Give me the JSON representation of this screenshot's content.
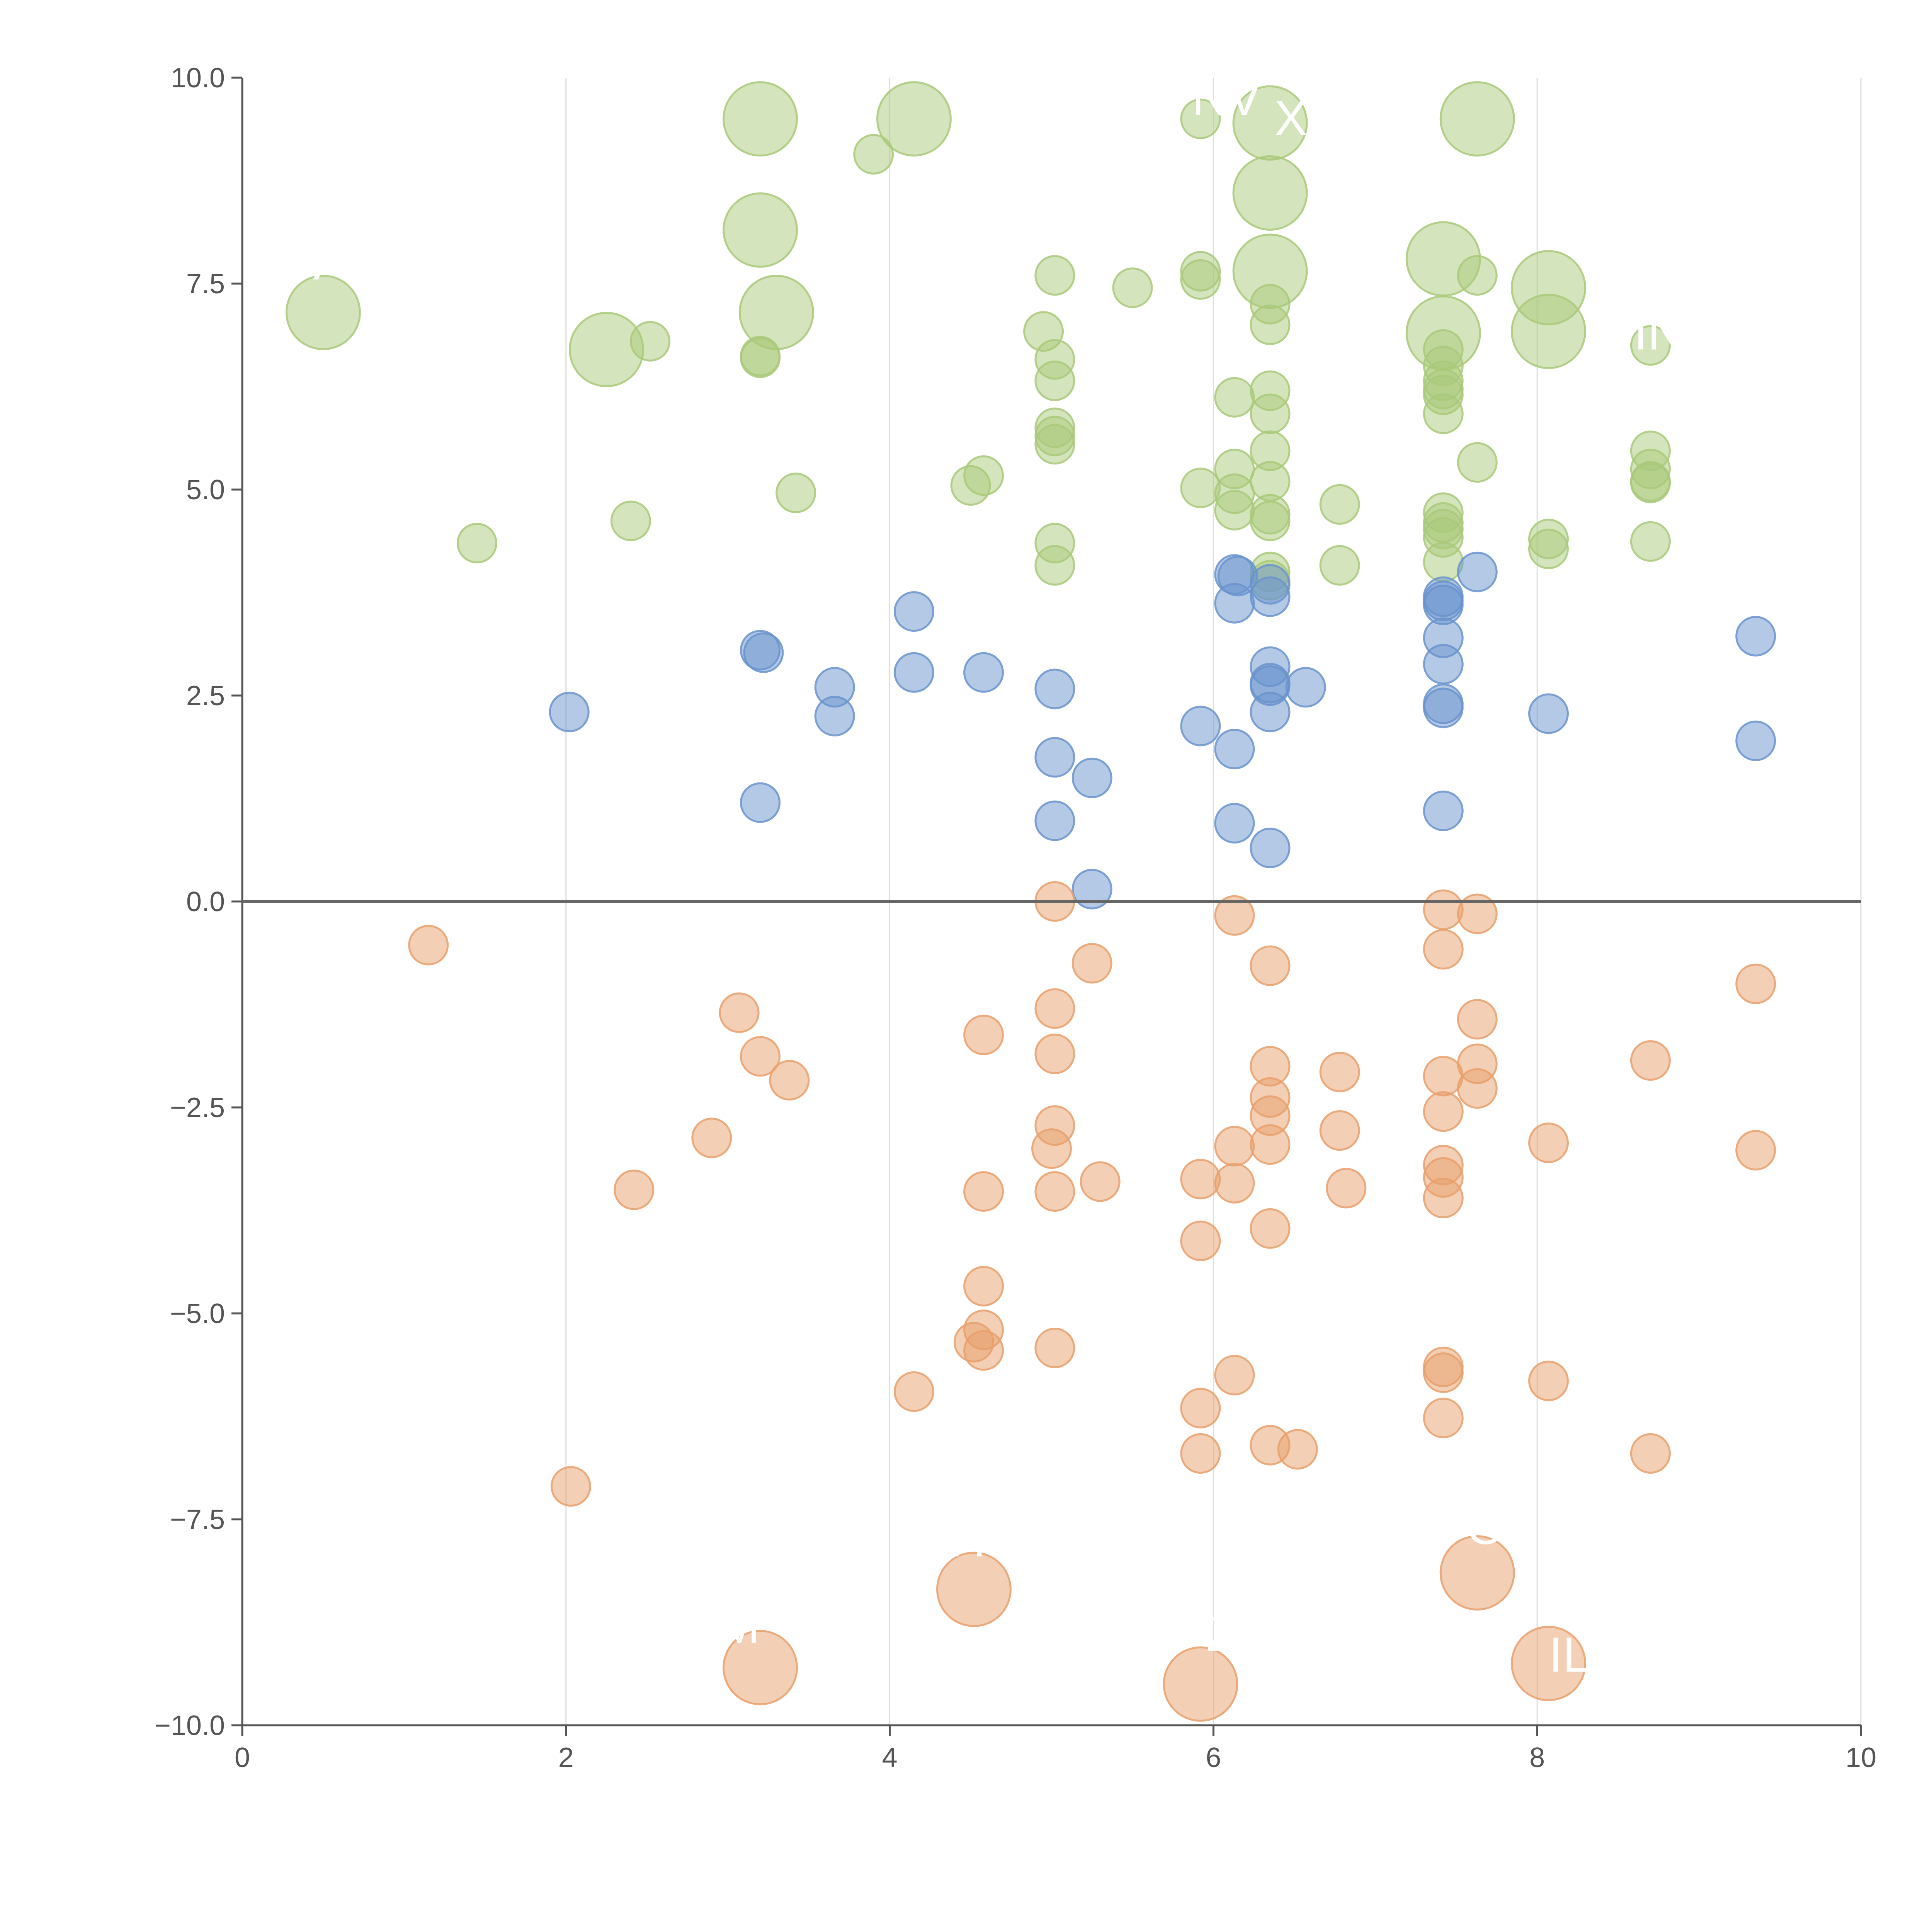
{
  "chart_data": {
    "type": "scatter",
    "title": "",
    "xlabel": "",
    "ylabel": "",
    "xlim": [
      0,
      10
    ],
    "ylim": [
      -10,
      10
    ],
    "x_ticks": [
      0,
      2,
      4,
      6,
      8,
      10
    ],
    "x_tick_labels": [
      "0",
      "2",
      "4",
      "6",
      "8",
      "10"
    ],
    "y_ticks": [
      -10,
      -7.5,
      -5,
      -2.5,
      0,
      2.5,
      5,
      7.5,
      10
    ],
    "y_tick_labels": [
      "−10.0",
      "−7.5",
      "−5.0",
      "−2.5",
      "0.0",
      "2.5",
      "5.0",
      "7.5",
      "10.0"
    ],
    "vertical_grid": true,
    "zero_line": true,
    "colors": {
      "green": "#a9c97a",
      "blue": "#6a93cd",
      "orange": "#e8a06c",
      "axis": "#555555",
      "grid": "#dddddd",
      "zero": "#666666"
    },
    "series": [
      {
        "name": "green",
        "color": "#a9c97a",
        "points": [
          [
            0.5,
            7.15,
            2
          ],
          [
            1.45,
            4.35,
            1
          ],
          [
            2.25,
            6.7,
            2
          ],
          [
            2.4,
            4.62,
            1
          ],
          [
            2.52,
            6.8,
            1
          ],
          [
            3.2,
            9.5,
            2
          ],
          [
            3.2,
            8.15,
            2
          ],
          [
            3.3,
            7.15,
            2
          ],
          [
            3.2,
            6.6,
            1
          ],
          [
            3.2,
            6.62,
            1
          ],
          [
            3.42,
            4.96,
            1
          ],
          [
            3.9,
            9.07,
            1
          ],
          [
            4.15,
            9.5,
            2
          ],
          [
            4.5,
            5.05,
            1
          ],
          [
            4.58,
            5.17,
            1
          ],
          [
            4.95,
            6.92,
            1
          ],
          [
            5.02,
            7.6,
            1
          ],
          [
            5.02,
            6.58,
            1
          ],
          [
            5.02,
            6.32,
            1
          ],
          [
            5.02,
            5.75,
            1
          ],
          [
            5.02,
            5.65,
            1
          ],
          [
            5.02,
            5.55,
            1
          ],
          [
            5.02,
            4.35,
            1
          ],
          [
            5.02,
            4.08,
            1
          ],
          [
            5.5,
            7.45,
            1
          ],
          [
            5.92,
            9.5,
            1
          ],
          [
            5.92,
            7.65,
            1
          ],
          [
            5.92,
            7.55,
            1
          ],
          [
            5.92,
            5.02,
            1
          ],
          [
            6.13,
            6.12,
            1
          ],
          [
            6.13,
            5.25,
            1
          ],
          [
            6.13,
            4.95,
            1
          ],
          [
            6.13,
            4.75,
            1
          ],
          [
            6.35,
            9.45,
            2
          ],
          [
            6.35,
            8.6,
            2
          ],
          [
            6.35,
            7.65,
            2
          ],
          [
            6.35,
            7.25,
            1
          ],
          [
            6.35,
            7.0,
            1
          ],
          [
            6.35,
            6.2,
            1
          ],
          [
            6.35,
            5.92,
            1
          ],
          [
            6.35,
            5.47,
            1
          ],
          [
            6.35,
            5.1,
            1
          ],
          [
            6.35,
            4.7,
            1
          ],
          [
            6.35,
            4.62,
            1
          ],
          [
            6.35,
            4.0,
            1
          ],
          [
            6.35,
            3.9,
            1
          ],
          [
            6.78,
            4.82,
            1
          ],
          [
            6.78,
            4.08,
            1
          ],
          [
            7.42,
            7.8,
            2
          ],
          [
            7.42,
            6.9,
            2
          ],
          [
            7.42,
            6.7,
            1
          ],
          [
            7.42,
            6.5,
            1
          ],
          [
            7.42,
            6.32,
            1
          ],
          [
            7.42,
            6.22,
            1
          ],
          [
            7.42,
            6.15,
            1
          ],
          [
            7.42,
            5.92,
            1
          ],
          [
            7.42,
            4.72,
            1
          ],
          [
            7.42,
            4.6,
            1
          ],
          [
            7.42,
            4.52,
            1
          ],
          [
            7.42,
            4.42,
            1
          ],
          [
            7.42,
            4.12,
            1
          ],
          [
            7.63,
            9.5,
            2
          ],
          [
            7.63,
            7.6,
            1
          ],
          [
            7.63,
            5.33,
            1
          ],
          [
            8.07,
            7.45,
            2
          ],
          [
            8.07,
            6.92,
            2
          ],
          [
            8.07,
            4.4,
            1
          ],
          [
            8.07,
            4.28,
            1
          ],
          [
            8.7,
            6.75,
            1
          ],
          [
            8.7,
            5.47,
            1
          ],
          [
            8.7,
            5.25,
            1
          ],
          [
            8.7,
            5.1,
            1
          ],
          [
            8.7,
            5.08,
            1
          ],
          [
            8.7,
            4.37,
            1
          ]
        ]
      },
      {
        "name": "blue",
        "color": "#6a93cd",
        "points": [
          [
            2.02,
            2.3,
            1
          ],
          [
            3.2,
            3.05,
            1
          ],
          [
            3.22,
            3.02,
            1
          ],
          [
            3.2,
            1.2,
            1
          ],
          [
            3.66,
            2.6,
            1
          ],
          [
            3.66,
            2.25,
            1
          ],
          [
            4.15,
            3.52,
            1
          ],
          [
            4.15,
            2.78,
            1
          ],
          [
            4.58,
            2.78,
            1
          ],
          [
            5.02,
            2.58,
            1
          ],
          [
            5.02,
            1.75,
            1
          ],
          [
            5.02,
            0.98,
            1
          ],
          [
            5.25,
            1.5,
            1
          ],
          [
            5.25,
            0.15,
            1
          ],
          [
            5.92,
            2.13,
            1
          ],
          [
            6.13,
            3.97,
            1
          ],
          [
            6.15,
            3.95,
            1
          ],
          [
            6.13,
            3.62,
            1
          ],
          [
            6.13,
            1.85,
            1
          ],
          [
            6.13,
            0.95,
            1
          ],
          [
            6.35,
            3.85,
            1
          ],
          [
            6.35,
            3.7,
            1
          ],
          [
            6.35,
            2.85,
            1
          ],
          [
            6.35,
            2.65,
            1
          ],
          [
            6.35,
            2.62,
            1
          ],
          [
            6.35,
            2.3,
            1
          ],
          [
            6.35,
            0.65,
            1
          ],
          [
            6.57,
            2.6,
            1
          ],
          [
            7.42,
            3.7,
            1
          ],
          [
            7.42,
            3.65,
            1
          ],
          [
            7.42,
            3.6,
            1
          ],
          [
            7.42,
            3.2,
            1
          ],
          [
            7.42,
            2.88,
            1
          ],
          [
            7.42,
            2.4,
            1
          ],
          [
            7.42,
            2.35,
            1
          ],
          [
            7.42,
            1.1,
            1
          ],
          [
            7.63,
            4.0,
            1
          ],
          [
            8.07,
            2.28,
            1
          ],
          [
            9.35,
            3.22,
            1
          ],
          [
            9.35,
            1.95,
            1
          ]
        ]
      },
      {
        "name": "orange",
        "color": "#e8a06c",
        "points": [
          [
            1.15,
            -0.53,
            1
          ],
          [
            2.03,
            -7.1,
            1
          ],
          [
            2.42,
            -3.5,
            1
          ],
          [
            2.9,
            -2.87,
            1
          ],
          [
            3.07,
            -1.35,
            1
          ],
          [
            3.2,
            -1.88,
            1
          ],
          [
            3.38,
            -2.17,
            1
          ],
          [
            3.2,
            -9.3,
            2
          ],
          [
            4.15,
            -5.95,
            1
          ],
          [
            4.52,
            -8.35,
            2
          ],
          [
            4.52,
            -5.35,
            1
          ],
          [
            4.58,
            -1.62,
            1
          ],
          [
            4.58,
            -3.52,
            1
          ],
          [
            4.58,
            -4.67,
            1
          ],
          [
            4.58,
            -5.2,
            1
          ],
          [
            4.58,
            -5.45,
            1
          ],
          [
            5.02,
            0.0,
            1
          ],
          [
            5.02,
            -1.3,
            1
          ],
          [
            5.02,
            -1.85,
            1
          ],
          [
            5.02,
            -2.72,
            1
          ],
          [
            5.0,
            -3.0,
            1
          ],
          [
            5.02,
            -3.52,
            1
          ],
          [
            5.02,
            -5.42,
            1
          ],
          [
            5.25,
            -0.75,
            1
          ],
          [
            5.3,
            -3.4,
            1
          ],
          [
            5.92,
            -3.37,
            1
          ],
          [
            5.92,
            -4.12,
            1
          ],
          [
            5.92,
            -6.15,
            1
          ],
          [
            5.92,
            -6.7,
            1
          ],
          [
            5.92,
            -9.5,
            2
          ],
          [
            6.13,
            -0.17,
            1
          ],
          [
            6.13,
            -2.97,
            1
          ],
          [
            6.13,
            -3.42,
            1
          ],
          [
            6.13,
            -5.75,
            1
          ],
          [
            6.35,
            -0.78,
            1
          ],
          [
            6.35,
            -2.0,
            1
          ],
          [
            6.35,
            -2.38,
            1
          ],
          [
            6.35,
            -2.6,
            1
          ],
          [
            6.35,
            -2.95,
            1
          ],
          [
            6.35,
            -3.97,
            1
          ],
          [
            6.35,
            -6.6,
            1
          ],
          [
            6.52,
            -6.65,
            1
          ],
          [
            6.78,
            -2.07,
            1
          ],
          [
            6.78,
            -2.78,
            1
          ],
          [
            6.82,
            -3.48,
            1
          ],
          [
            7.42,
            -0.1,
            1
          ],
          [
            7.42,
            -0.58,
            1
          ],
          [
            7.42,
            -2.12,
            1
          ],
          [
            7.42,
            -2.55,
            1
          ],
          [
            7.42,
            -3.2,
            1
          ],
          [
            7.42,
            -3.35,
            1
          ],
          [
            7.42,
            -3.6,
            1
          ],
          [
            7.42,
            -5.65,
            1
          ],
          [
            7.42,
            -5.72,
            1
          ],
          [
            7.42,
            -6.27,
            1
          ],
          [
            7.63,
            -0.15,
            1
          ],
          [
            7.63,
            -1.43,
            1
          ],
          [
            7.63,
            -1.97,
            1
          ],
          [
            7.63,
            -2.27,
            1
          ],
          [
            7.63,
            -8.15,
            2
          ],
          [
            8.07,
            -2.93,
            1
          ],
          [
            8.07,
            -5.82,
            1
          ],
          [
            8.07,
            -9.25,
            2
          ],
          [
            8.7,
            -1.93,
            1
          ],
          [
            8.7,
            -6.7,
            1
          ],
          [
            9.35,
            -1.0,
            1
          ],
          [
            9.35,
            -3.02,
            1
          ]
        ]
      }
    ],
    "annotations": [
      {
        "text": "VA",
        "x": 0.45,
        "y": 7.55
      },
      {
        "text": "NV",
        "x": 6.08,
        "y": 9.55
      },
      {
        "text": "XE",
        "x": 6.58,
        "y": 9.3
      },
      {
        "text": "IN",
        "x": 8.75,
        "y": 6.7
      },
      {
        "text": "KH",
        "x": 4.38,
        "y": -7.95
      },
      {
        "text": "VO",
        "x": 7.58,
        "y": -7.8
      },
      {
        "text": "M",
        "x": 3.07,
        "y": -9.0
      },
      {
        "text": "Z",
        "x": 6.05,
        "y": -9.1
      },
      {
        "text": "IL",
        "x": 8.2,
        "y": -9.35
      }
    ]
  }
}
